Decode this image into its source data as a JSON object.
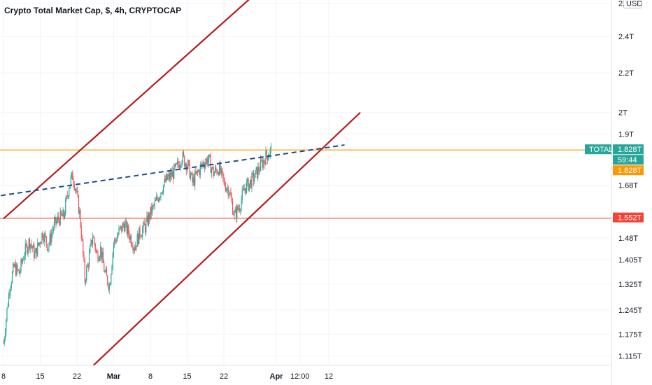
{
  "header": {
    "title": "Crypto Total Market Cap, $, 4h, CRYPTOCAP"
  },
  "axis": {
    "currency": "USD",
    "scale": "log"
  },
  "chart_data": {
    "type": "candlestick",
    "title": "Crypto Total Market Cap, $, 4h, CRYPTOCAP",
    "y_scale": "log",
    "ylim": [
      1.09,
      2.62
    ],
    "y_unit": "T USD",
    "y_ticks": [
      {
        "value": 2.6,
        "label": "2."
      },
      {
        "value": 2.4,
        "label": "2.4T"
      },
      {
        "value": 2.2,
        "label": "2.2T"
      },
      {
        "value": 2.0,
        "label": "2T"
      },
      {
        "value": 1.9,
        "label": "1.9T"
      },
      {
        "value": 1.68,
        "label": "1.68T"
      },
      {
        "value": 1.48,
        "label": "1.48T"
      },
      {
        "value": 1.405,
        "label": "1.405T"
      },
      {
        "value": 1.325,
        "label": "1.325T"
      },
      {
        "value": 1.245,
        "label": "1.245T"
      },
      {
        "value": 1.175,
        "label": "1.175T"
      },
      {
        "value": 1.115,
        "label": "1.115T"
      }
    ],
    "x_range_days": [
      0,
      47
    ],
    "x_ticks": [
      {
        "day": 0,
        "label": "8"
      },
      {
        "day": 7,
        "label": "15"
      },
      {
        "day": 14,
        "label": "22"
      },
      {
        "day": 21,
        "label": "Mar"
      },
      {
        "day": 28,
        "label": "8"
      },
      {
        "day": 35,
        "label": "15"
      },
      {
        "day": 42,
        "label": "22"
      },
      {
        "day": 52,
        "label": "Apr"
      },
      {
        "day": 56.5,
        "label": "12:00"
      },
      {
        "day": 62,
        "label": "12"
      }
    ],
    "price_points": [
      [
        0,
        1.15
      ],
      [
        0.5,
        1.22
      ],
      [
        1.2,
        1.32
      ],
      [
        2,
        1.38
      ],
      [
        3,
        1.36
      ],
      [
        4,
        1.43
      ],
      [
        5,
        1.47
      ],
      [
        6,
        1.42
      ],
      [
        7.5,
        1.5
      ],
      [
        8.5,
        1.45
      ],
      [
        9.5,
        1.52
      ],
      [
        10.5,
        1.55
      ],
      [
        11.5,
        1.56
      ],
      [
        12.5,
        1.68
      ],
      [
        13.2,
        1.72
      ],
      [
        13.8,
        1.66
      ],
      [
        14.5,
        1.57
      ],
      [
        15,
        1.46
      ],
      [
        15.5,
        1.34
      ],
      [
        16.2,
        1.4
      ],
      [
        17,
        1.49
      ],
      [
        17.8,
        1.42
      ],
      [
        18.5,
        1.44
      ],
      [
        19.3,
        1.36
      ],
      [
        20.2,
        1.32
      ],
      [
        21,
        1.46
      ],
      [
        22,
        1.5
      ],
      [
        23,
        1.53
      ],
      [
        24,
        1.49
      ],
      [
        25,
        1.45
      ],
      [
        26,
        1.5
      ],
      [
        27,
        1.52
      ],
      [
        28,
        1.57
      ],
      [
        29,
        1.61
      ],
      [
        30,
        1.66
      ],
      [
        31,
        1.7
      ],
      [
        32,
        1.72
      ],
      [
        33,
        1.75
      ],
      [
        34,
        1.8
      ],
      [
        34.5,
        1.78
      ],
      [
        35.2,
        1.76
      ],
      [
        36,
        1.69
      ],
      [
        37,
        1.73
      ],
      [
        38,
        1.77
      ],
      [
        39,
        1.79
      ],
      [
        40,
        1.73
      ],
      [
        41,
        1.75
      ],
      [
        42,
        1.69
      ],
      [
        43,
        1.66
      ],
      [
        44,
        1.56
      ],
      [
        45,
        1.6
      ],
      [
        46,
        1.67
      ],
      [
        47,
        1.69
      ],
      [
        48,
        1.72
      ],
      [
        49,
        1.76
      ],
      [
        50,
        1.8
      ],
      [
        51,
        1.828
      ]
    ],
    "lines": [
      {
        "name": "upper channel",
        "style": "solid",
        "color": "#b71c1c",
        "from": [
          0,
          1.55
        ],
        "to": [
          51,
          2.75
        ]
      },
      {
        "name": "lower channel",
        "style": "solid",
        "color": "#b71c1c",
        "from": [
          14,
          1.05
        ],
        "to": [
          68,
          2.0
        ]
      },
      {
        "name": "trend",
        "style": "dashed",
        "color": "#1a4d8c",
        "from": [
          -10,
          1.61
        ],
        "to": [
          65,
          1.85
        ]
      }
    ],
    "horizontal_levels": [
      {
        "value": 1.828,
        "color": "#ff9800"
      },
      {
        "value": 1.552,
        "color": "#f44336"
      }
    ],
    "price_tags": [
      {
        "label": "TOTAL",
        "value_text": "1.828T",
        "color": "#26a69a"
      },
      {
        "label": "",
        "value_text": "59:44",
        "color": "#26a69a"
      },
      {
        "label": "",
        "value_text": "1.828T",
        "color": "#ff9800"
      },
      {
        "label": "",
        "value_text": "1.552T",
        "color": "#f44336"
      }
    ],
    "colors": {
      "up": "#26a69a",
      "down": "#ef5350",
      "grid": "#f0f3fa",
      "axis_bg": "#ffffff"
    }
  }
}
